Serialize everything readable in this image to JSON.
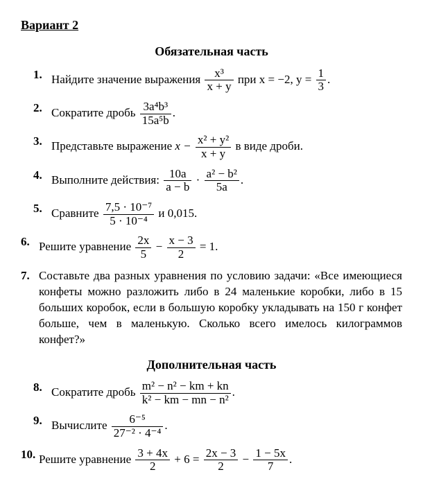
{
  "variant": "Вариант 2",
  "sections": {
    "main_title": "Обязательная часть",
    "extra_title": "Дополнительная часть"
  },
  "p1": {
    "num": "1.",
    "t1": "Найдите значение выражения ",
    "frac_top": "x³",
    "frac_bot": "x + y",
    "t2": " при  ",
    "cond": "x = −2,  y = ",
    "y_top": "1",
    "y_bot": "3",
    "end": "."
  },
  "p2": {
    "num": "2.",
    "t1": "Сократите дробь ",
    "frac_top": "3a⁴b³",
    "frac_bot": "15a⁵b",
    "end": "."
  },
  "p3": {
    "num": "3.",
    "t1": "Представьте выражение ",
    "left": "x − ",
    "frac_top": "x² + y²",
    "frac_bot": "x + y",
    "t2": " в виде дроби."
  },
  "p4": {
    "num": "4.",
    "t1": "Выполните действия: ",
    "f1_top": "10a",
    "f1_bot": "a − b",
    "dot": " · ",
    "f2_top": "a² − b²",
    "f2_bot": "5a",
    "end": "."
  },
  "p5": {
    "num": "5.",
    "t1": "Сравните ",
    "frac_top": "7,5 · 10⁻⁷",
    "frac_bot": "5 · 10⁻⁴",
    "t2": " и 0,015."
  },
  "p6": {
    "num": "6.",
    "t1": "Решите уравнение ",
    "f1_top": "2x",
    "f1_bot": "5",
    "minus": " − ",
    "f2_top": "x − 3",
    "f2_bot": "2",
    "eq": " = 1."
  },
  "p7": {
    "num": "7.",
    "text": "Составьте два разных уравнения по условию задачи: «Все имеющиеся конфеты можно разложить либо в 24 маленькие коробки, либо в 15 больших коробок, если в большую коробку укладывать на 150 г конфет больше, чем в маленькую. Сколько всего имелось килограммов конфет?»"
  },
  "p8": {
    "num": "8.",
    "t1": "Сократите дробь ",
    "frac_top": "m² − n² − km + kn",
    "frac_bot": "k² − km − mn − n²",
    "end": "."
  },
  "p9": {
    "num": "9.",
    "t1": "Вычислите ",
    "frac_top": "6⁻⁵",
    "frac_bot": "27⁻² · 4⁻⁴",
    "end": "."
  },
  "p10": {
    "num": "10.",
    "t1": "Решите уравнение ",
    "f1_top": "3 + 4x",
    "f1_bot": "2",
    "mid": " + 6 = ",
    "f2_top": "2x − 3",
    "f2_bot": "2",
    "minus": " − ",
    "f3_top": "1 − 5x",
    "f3_bot": "7",
    "end": "."
  }
}
